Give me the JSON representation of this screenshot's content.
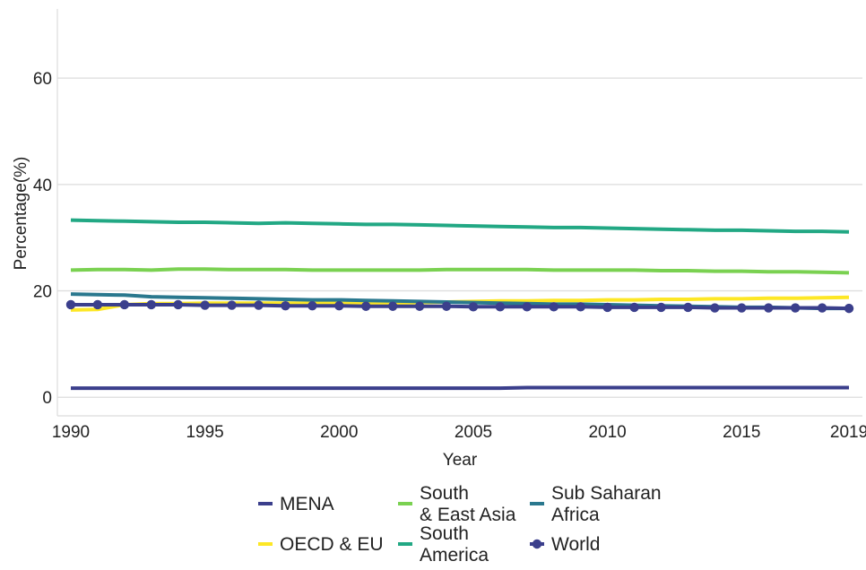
{
  "chart_data": {
    "type": "line",
    "title": "",
    "xlabel": "Year",
    "ylabel": "Percentage(%)",
    "xlim": [
      1989.5,
      2019.5
    ],
    "ylim": [
      -3.5,
      73
    ],
    "x_ticks": [
      1990,
      1995,
      2000,
      2005,
      2010,
      2015,
      2019
    ],
    "y_ticks": [
      0,
      20,
      40,
      60
    ],
    "grid": "horizontal",
    "legend_position": "bottom",
    "x": [
      1990,
      1991,
      1992,
      1993,
      1994,
      1995,
      1996,
      1997,
      1998,
      1999,
      2000,
      2001,
      2002,
      2003,
      2004,
      2005,
      2006,
      2007,
      2008,
      2009,
      2010,
      2011,
      2012,
      2013,
      2014,
      2015,
      2016,
      2017,
      2018,
      2019
    ],
    "series": [
      {
        "name": "MENA",
        "color": "#3b3f8c",
        "marker": "none",
        "values": [
          1.7,
          1.7,
          1.7,
          1.7,
          1.7,
          1.7,
          1.7,
          1.7,
          1.7,
          1.7,
          1.7,
          1.7,
          1.7,
          1.7,
          1.7,
          1.7,
          1.7,
          1.8,
          1.8,
          1.8,
          1.8,
          1.8,
          1.8,
          1.8,
          1.8,
          1.8,
          1.8,
          1.8,
          1.8,
          1.8
        ]
      },
      {
        "name": "OECD & EU",
        "color": "#fde725",
        "marker": "none",
        "values": [
          16.4,
          16.5,
          17.4,
          17.6,
          17.6,
          17.7,
          17.7,
          17.7,
          17.7,
          17.7,
          17.7,
          17.7,
          17.7,
          17.8,
          17.9,
          18.0,
          18.1,
          18.1,
          18.2,
          18.2,
          18.3,
          18.3,
          18.4,
          18.4,
          18.5,
          18.5,
          18.6,
          18.6,
          18.7,
          18.8
        ]
      },
      {
        "name": "South\n& East Asia",
        "color": "#7ad151",
        "marker": "none",
        "values": [
          23.9,
          24.0,
          24.0,
          23.9,
          24.1,
          24.1,
          24.0,
          24.0,
          24.0,
          23.9,
          23.9,
          23.9,
          23.9,
          23.9,
          24.0,
          24.0,
          24.0,
          24.0,
          23.9,
          23.9,
          23.9,
          23.9,
          23.8,
          23.8,
          23.7,
          23.7,
          23.6,
          23.6,
          23.5,
          23.4
        ]
      },
      {
        "name": "South\nAmerica",
        "color": "#22a884",
        "marker": "none",
        "values": [
          33.3,
          33.2,
          33.1,
          33.0,
          32.9,
          32.9,
          32.8,
          32.7,
          32.8,
          32.7,
          32.6,
          32.5,
          32.5,
          32.4,
          32.3,
          32.2,
          32.1,
          32.0,
          31.9,
          31.9,
          31.8,
          31.7,
          31.6,
          31.5,
          31.4,
          31.4,
          31.3,
          31.2,
          31.2,
          31.1
        ]
      },
      {
        "name": "Sub Saharan\nAfrica",
        "color": "#2a788e",
        "marker": "none",
        "values": [
          19.4,
          19.3,
          19.2,
          18.9,
          18.8,
          18.7,
          18.6,
          18.5,
          18.4,
          18.3,
          18.3,
          18.2,
          18.1,
          18.0,
          17.9,
          17.8,
          17.7,
          17.6,
          17.5,
          17.5,
          17.4,
          17.3,
          17.2,
          17.1,
          17.0,
          16.9,
          16.9,
          16.8,
          16.7,
          16.7
        ]
      },
      {
        "name": "World",
        "color": "#3b3f8c",
        "marker": "circle",
        "values": [
          17.4,
          17.4,
          17.4,
          17.4,
          17.4,
          17.3,
          17.3,
          17.3,
          17.2,
          17.2,
          17.2,
          17.1,
          17.1,
          17.1,
          17.1,
          17.0,
          17.0,
          17.0,
          17.0,
          17.0,
          16.9,
          16.9,
          16.9,
          16.9,
          16.8,
          16.8,
          16.8,
          16.8,
          16.8,
          16.7
        ]
      }
    ],
    "legend_rows": [
      [
        "MENA",
        "South\n& East Asia",
        "Sub Saharan\nAfrica"
      ],
      [
        "OECD & EU",
        "South\nAmerica",
        "World"
      ]
    ]
  }
}
